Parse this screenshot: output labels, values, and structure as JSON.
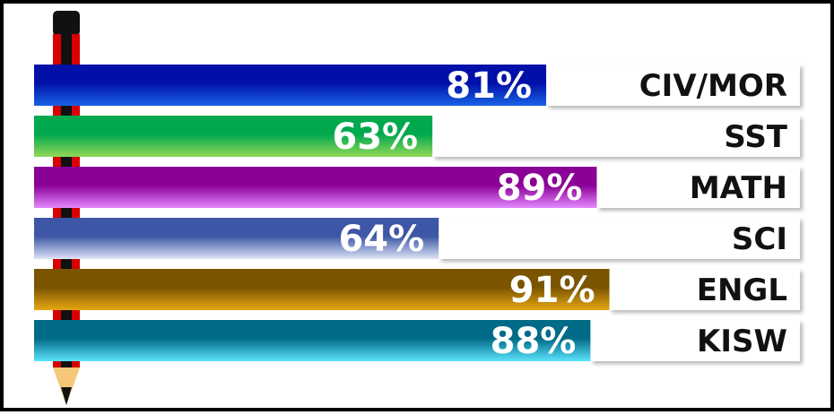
{
  "chart_data": {
    "type": "bar",
    "orientation": "horizontal",
    "categories": [
      "CIV/MOR",
      "SST",
      "MATH",
      "SCI",
      "ENGL",
      "KISW"
    ],
    "values": [
      81,
      63,
      89,
      64,
      91,
      88
    ],
    "value_labels": [
      "81%",
      "63%",
      "89%",
      "64%",
      "91%",
      "88%"
    ],
    "unit": "%",
    "xlim": [
      0,
      100
    ],
    "grid": false,
    "legend": "none",
    "colors": [
      {
        "dark": "#0010a8",
        "light": "#1a63e6"
      },
      {
        "dark": "#00a84e",
        "light": "#93d957"
      },
      {
        "dark": "#8b0096",
        "light": "#e488ff"
      },
      {
        "dark": "#3e56a6",
        "light": "#dde4f7"
      },
      {
        "dark": "#7a5400",
        "light": "#e5a712"
      },
      {
        "dark": "#006b86",
        "light": "#5ce3fd"
      }
    ],
    "decoration": "pencil"
  }
}
